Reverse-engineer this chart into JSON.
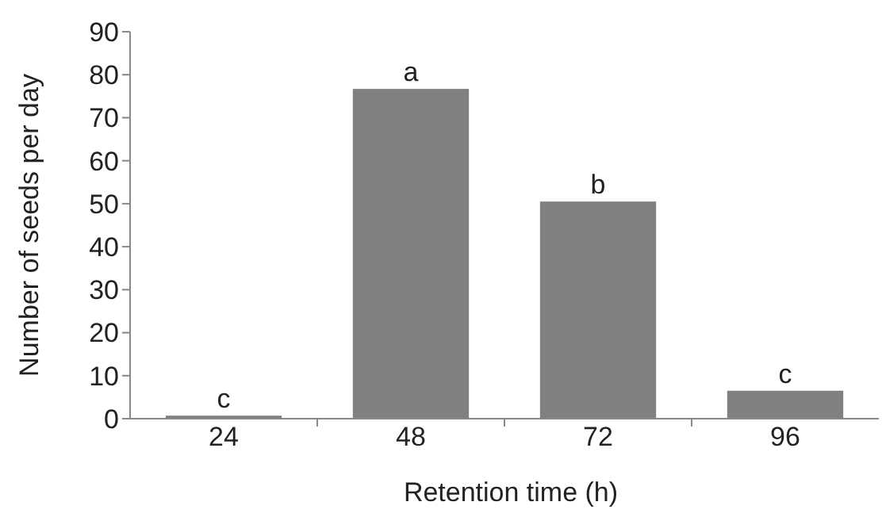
{
  "chart_data": {
    "type": "bar",
    "xlabel": "Retention time (h)",
    "ylabel": "Number of seeds per day",
    "categories": [
      "24",
      "48",
      "72",
      "96"
    ],
    "values": [
      0.7,
      76.7,
      50.5,
      6.5
    ],
    "color": "#808080",
    "ylim": [
      0,
      90
    ],
    "yticks": [
      0,
      10,
      20,
      30,
      40,
      50,
      60,
      70,
      80,
      90
    ],
    "annotations": [
      {
        "text": "c",
        "x": "24",
        "y": 0.7
      },
      {
        "text": "a",
        "x": "48",
        "y": 76.7
      },
      {
        "text": "b",
        "x": "72",
        "y": 50.5
      },
      {
        "text": "c",
        "x": "96",
        "y": 6.5
      }
    ]
  }
}
